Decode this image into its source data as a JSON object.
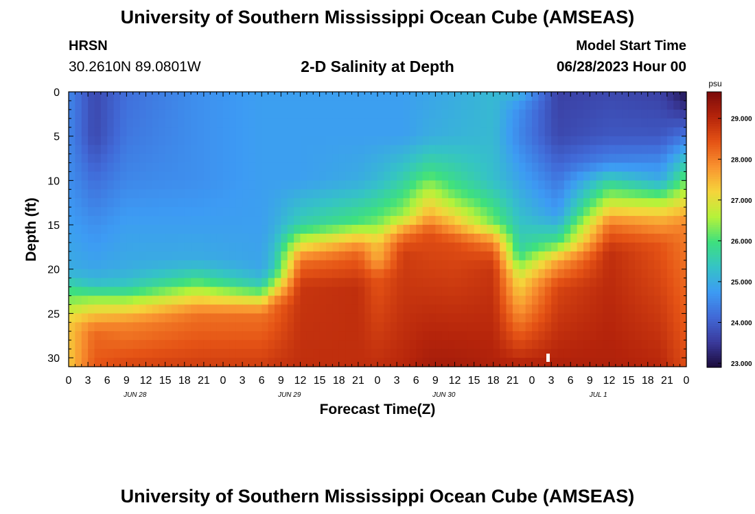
{
  "header": {
    "title": "University of Southern Mississippi Ocean Cube (AMSEAS)",
    "station_name": "HRSN",
    "station_coords": "30.2610N  89.0801W",
    "product_title": "2-D Salinity at Depth",
    "model_start_label": "Model Start Time",
    "model_start_value": "06/28/2023 Hour 00"
  },
  "footer": {
    "title": "University of Southern Mississippi Ocean Cube (AMSEAS)"
  },
  "chart_data": {
    "type": "heatmap",
    "xlabel": "Forecast Time(Z)",
    "ylabel": "Depth (ft)",
    "x_tick_labels": [
      "0",
      "3",
      "6",
      "9",
      "12",
      "15",
      "18",
      "21",
      "0",
      "3",
      "6",
      "9",
      "12",
      "15",
      "18",
      "21",
      "0",
      "3",
      "6",
      "9",
      "12",
      "15",
      "18",
      "21",
      "0",
      "3",
      "6",
      "9",
      "12",
      "15",
      "18",
      "21",
      "0"
    ],
    "x_range_hours": [
      0,
      96
    ],
    "date_labels": [
      {
        "text": "JUN 28",
        "hour": 10
      },
      {
        "text": "JUN 29",
        "hour": 34
      },
      {
        "text": "JUN 30",
        "hour": 58
      },
      {
        "text": "JUL 1",
        "hour": 82
      }
    ],
    "y_ticks": [
      0,
      5,
      10,
      15,
      20,
      25,
      30
    ],
    "y_range": [
      0,
      31
    ],
    "y_inverted": true,
    "colorbar": {
      "unit": "psu",
      "range": [
        22.9,
        29.65
      ],
      "ticks": [
        "23.000",
        "24.000",
        "25.000",
        "26.000",
        "27.000",
        "28.000",
        "29.000"
      ],
      "tick_values": [
        23,
        24,
        25,
        26,
        27,
        28,
        29
      ],
      "palette": [
        "#1b0b3b",
        "#3a3a9c",
        "#4169d7",
        "#3d9bf4",
        "#35c3c6",
        "#3ee07e",
        "#b5f23a",
        "#f5d53b",
        "#f99330",
        "#e55315",
        "#b5240b",
        "#7b0b0b"
      ]
    },
    "approx_salinity_profiles": [
      {
        "hour": 0,
        "depth": [
          0,
          5,
          10,
          15,
          20,
          21,
          22,
          24,
          26,
          31
        ],
        "psu": [
          24.5,
          24.5,
          24.6,
          24.8,
          25.0,
          25.3,
          25.8,
          26.5,
          27.3,
          27.3
        ]
      },
      {
        "hour": 4,
        "depth": [
          0,
          5,
          10,
          15,
          20,
          22,
          23,
          25,
          27,
          31
        ],
        "psu": [
          23.7,
          23.7,
          24.2,
          24.6,
          24.9,
          25.4,
          26.2,
          27.3,
          28.2,
          28.4
        ]
      },
      {
        "hour": 9,
        "depth": [
          0,
          5,
          10,
          15,
          20,
          22,
          24,
          26,
          31
        ],
        "psu": [
          24.2,
          24.3,
          24.5,
          24.8,
          25.0,
          25.5,
          26.8,
          27.9,
          28.6
        ]
      },
      {
        "hour": 20,
        "depth": [
          0,
          5,
          10,
          15,
          19,
          21,
          23,
          25,
          31
        ],
        "psu": [
          24.6,
          24.6,
          24.6,
          24.8,
          25.0,
          25.8,
          27.0,
          28.1,
          28.7
        ]
      },
      {
        "hour": 30,
        "depth": [
          0,
          5,
          10,
          15,
          20,
          22,
          23,
          25,
          31
        ],
        "psu": [
          24.8,
          24.8,
          24.8,
          24.8,
          24.9,
          25.6,
          26.6,
          28.1,
          28.7
        ]
      },
      {
        "hour": 32,
        "depth": [
          0,
          5,
          10,
          15,
          20,
          22,
          24,
          31
        ],
        "psu": [
          24.8,
          24.8,
          24.8,
          25.0,
          25.5,
          26.8,
          28.2,
          28.8
        ]
      },
      {
        "hour": 36,
        "depth": [
          0,
          5,
          10,
          15,
          17,
          19,
          22,
          31
        ],
        "psu": [
          24.8,
          24.8,
          24.8,
          25.6,
          26.8,
          28.1,
          28.8,
          28.9
        ]
      },
      {
        "hour": 45,
        "depth": [
          0,
          5,
          10,
          15,
          16,
          18,
          22,
          31
        ],
        "psu": [
          24.8,
          24.8,
          25.0,
          26.1,
          27.0,
          28.2,
          28.9,
          28.9
        ]
      },
      {
        "hour": 48,
        "depth": [
          0,
          5,
          10,
          15,
          17,
          19,
          21,
          31
        ],
        "psu": [
          24.8,
          24.8,
          25.2,
          26.3,
          27.3,
          27.6,
          28.4,
          28.9
        ]
      },
      {
        "hour": 52,
        "depth": [
          0,
          5,
          10,
          14,
          16,
          18,
          31
        ],
        "psu": [
          24.8,
          24.8,
          25.6,
          26.5,
          28.0,
          28.7,
          29.0
        ]
      },
      {
        "hour": 56,
        "depth": [
          0,
          5,
          9,
          11,
          14,
          16,
          31
        ],
        "psu": [
          24.9,
          25.0,
          25.9,
          26.6,
          27.6,
          28.5,
          29.2
        ]
      },
      {
        "hour": 60,
        "depth": [
          0,
          5,
          10,
          12,
          15,
          17,
          31
        ],
        "psu": [
          25.0,
          25.1,
          25.8,
          26.3,
          27.5,
          28.5,
          29.2
        ]
      },
      {
        "hour": 66,
        "depth": [
          0,
          5,
          10,
          15,
          16,
          18,
          20,
          31
        ],
        "psu": [
          25.2,
          25.2,
          25.3,
          26.3,
          27.3,
          28.4,
          28.8,
          29.1
        ]
      },
      {
        "hour": 70,
        "depth": [
          0,
          2,
          5,
          10,
          15,
          18,
          21,
          31
        ],
        "psu": [
          25.1,
          24.6,
          24.5,
          24.9,
          25.4,
          25.7,
          27.0,
          29.1
        ]
      },
      {
        "hour": 76,
        "depth": [
          0,
          5,
          10,
          14,
          17,
          19,
          22,
          31
        ],
        "psu": [
          23.6,
          23.7,
          24.3,
          24.8,
          26.0,
          27.6,
          28.6,
          29.1
        ]
      },
      {
        "hour": 84,
        "depth": [
          0,
          5,
          8,
          10,
          13,
          15,
          18,
          31
        ],
        "psu": [
          23.7,
          23.9,
          24.5,
          25.6,
          27.0,
          28.1,
          28.9,
          29.1
        ]
      },
      {
        "hour": 92,
        "depth": [
          0,
          5,
          10,
          12,
          14,
          17,
          31
        ],
        "psu": [
          23.6,
          23.9,
          25.0,
          26.3,
          27.4,
          28.4,
          29.0
        ]
      },
      {
        "hour": 96,
        "depth": [
          0,
          2,
          5,
          8,
          10,
          13,
          15,
          31
        ],
        "psu": [
          23.0,
          23.4,
          24.3,
          25.5,
          26.2,
          27.3,
          28.0,
          28.5
        ]
      }
    ]
  }
}
